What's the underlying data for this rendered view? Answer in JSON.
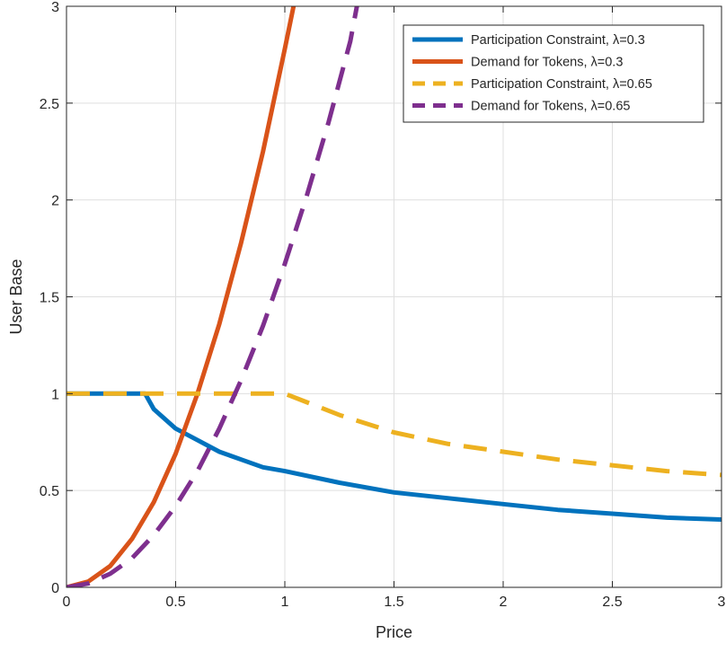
{
  "chart_data": {
    "type": "line",
    "xlabel": "Price",
    "ylabel": "User Base",
    "xlim": [
      0,
      3
    ],
    "ylim": [
      0,
      3
    ],
    "xticks": [
      "0",
      "0.5",
      "1",
      "1.5",
      "2",
      "2.5",
      "3"
    ],
    "yticks": [
      "0",
      "0.5",
      "1",
      "1.5",
      "2",
      "2.5",
      "3"
    ],
    "grid": true,
    "legend_position": "top-right",
    "series": [
      {
        "name": "Participation Constraint, λ=0.3",
        "color": "#0072BD",
        "style": "solid",
        "x": [
          0,
          0.3,
          0.36,
          0.4,
          0.5,
          0.6,
          0.7,
          0.8,
          0.9,
          1.0,
          1.25,
          1.5,
          1.75,
          2.0,
          2.25,
          2.5,
          2.75,
          3.0
        ],
        "y": [
          1,
          1,
          1,
          0.92,
          0.82,
          0.76,
          0.7,
          0.66,
          0.62,
          0.6,
          0.54,
          0.49,
          0.46,
          0.43,
          0.4,
          0.38,
          0.36,
          0.35
        ]
      },
      {
        "name": "Demand for Tokens, λ=0.3",
        "color": "#D95319",
        "style": "solid",
        "x": [
          0,
          0.1,
          0.2,
          0.3,
          0.4,
          0.5,
          0.6,
          0.7,
          0.8,
          0.9,
          1.0,
          1.04
        ],
        "y": [
          0,
          0.03,
          0.11,
          0.25,
          0.44,
          0.69,
          1.0,
          1.36,
          1.78,
          2.25,
          2.78,
          3.0
        ]
      },
      {
        "name": "Participation Constraint, λ=0.65",
        "color": "#EDB120",
        "style": "dashed",
        "x": [
          0,
          0.5,
          1.0,
          1.25,
          1.5,
          1.75,
          2.0,
          2.25,
          2.5,
          2.75,
          3.0
        ],
        "y": [
          1,
          1,
          1,
          0.89,
          0.8,
          0.74,
          0.7,
          0.66,
          0.63,
          0.6,
          0.58
        ]
      },
      {
        "name": "Demand for Tokens, λ=0.65",
        "color": "#7E2F8E",
        "style": "dashed",
        "x": [
          0,
          0.1,
          0.2,
          0.3,
          0.4,
          0.5,
          0.6,
          0.7,
          0.8,
          0.9,
          1.0,
          1.1,
          1.2,
          1.3,
          1.33
        ],
        "y": [
          0,
          0.02,
          0.07,
          0.15,
          0.27,
          0.42,
          0.6,
          0.82,
          1.07,
          1.35,
          1.67,
          2.02,
          2.4,
          2.82,
          3.0
        ]
      }
    ]
  }
}
